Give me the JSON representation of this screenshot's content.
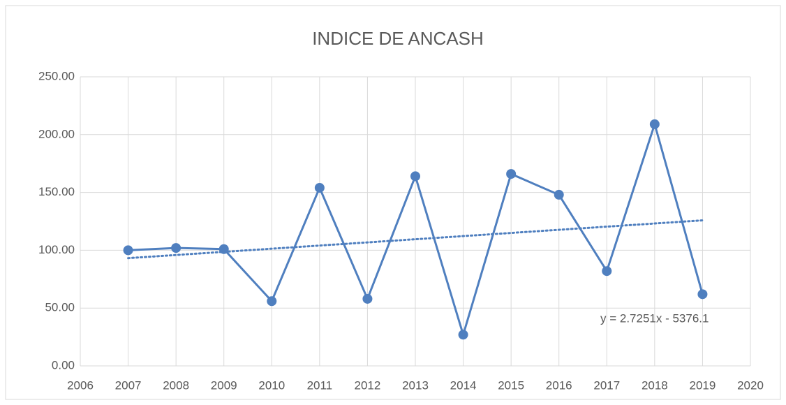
{
  "chart_data": {
    "type": "line",
    "title": "INDICE DE ANCASH",
    "x": [
      2007,
      2008,
      2009,
      2010,
      2011,
      2012,
      2013,
      2014,
      2015,
      2016,
      2017,
      2018,
      2019
    ],
    "values": [
      100,
      102,
      101,
      56,
      154,
      58,
      164,
      27,
      166,
      148,
      82,
      209,
      62
    ],
    "color": "#4f7fbf",
    "trendline": {
      "x": [
        2007,
        2019
      ],
      "values": [
        93.18,
        125.88
      ],
      "color": "#4f7fbf",
      "equation": "y = 2.7251x - 5376.1"
    },
    "xlim": [
      2006,
      2020
    ],
    "xticks": [
      2006,
      2007,
      2008,
      2009,
      2010,
      2011,
      2012,
      2013,
      2014,
      2015,
      2016,
      2017,
      2018,
      2019,
      2020
    ],
    "ylim": [
      0,
      250
    ],
    "yticks": [
      {
        "value": 0,
        "label": "0.00"
      },
      {
        "value": 50,
        "label": "50.00"
      },
      {
        "value": 100,
        "label": "100.00"
      },
      {
        "value": 150,
        "label": "150.00"
      },
      {
        "value": 200,
        "label": "200.00"
      },
      {
        "value": 250,
        "label": "250.00"
      }
    ],
    "grid": true
  }
}
